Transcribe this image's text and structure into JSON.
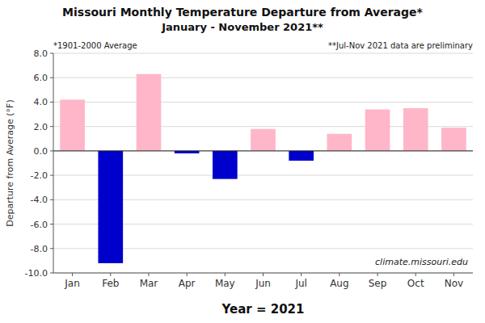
{
  "chart_data": {
    "type": "bar",
    "title": "Missouri Monthly Temperature Departure from Average*",
    "subtitle": "January - November 2021**",
    "x_label": "Year = 2021",
    "y_label": "Departure from Average (°F)",
    "annotations": [
      "*1901-2000 Average",
      "**Jul-Nov 2021 data are preliminary",
      "climate.missouri.edu"
    ],
    "categories": [
      "Jan",
      "Feb",
      "Mar",
      "Apr",
      "May",
      "Jun",
      "Jul",
      "Aug",
      "Sep",
      "Oct",
      "Nov"
    ],
    "values": [
      4.2,
      -9.2,
      6.3,
      -0.2,
      -2.3,
      1.8,
      -0.8,
      1.4,
      3.4,
      3.5,
      1.9
    ],
    "colors": [
      "#FFB6C8",
      "#0000CC",
      "#FFB6C8",
      "#0000CC",
      "#0000CC",
      "#FFB6C8",
      "#0000CC",
      "#FFB6C8",
      "#FFB6C8",
      "#FFB6C8",
      "#FFB6C8"
    ],
    "ylim": [
      -10.0,
      8.0
    ],
    "yticks": [
      {
        "value": -10.0,
        "label": "-10.0"
      },
      {
        "value": -8.0,
        "label": "-8.0"
      },
      {
        "value": -6.0,
        "label": "-6.0"
      },
      {
        "value": -4.0,
        "label": "-4.0"
      },
      {
        "value": -2.0,
        "label": "-2.0"
      },
      {
        "value": 0.0,
        "label": "0.0"
      },
      {
        "value": 2.0,
        "label": "2.0"
      },
      {
        "value": 4.0,
        "label": "4.0"
      },
      {
        "value": 6.0,
        "label": "6.0"
      },
      {
        "value": 8.0,
        "label": "8.0"
      }
    ],
    "grid": true
  }
}
